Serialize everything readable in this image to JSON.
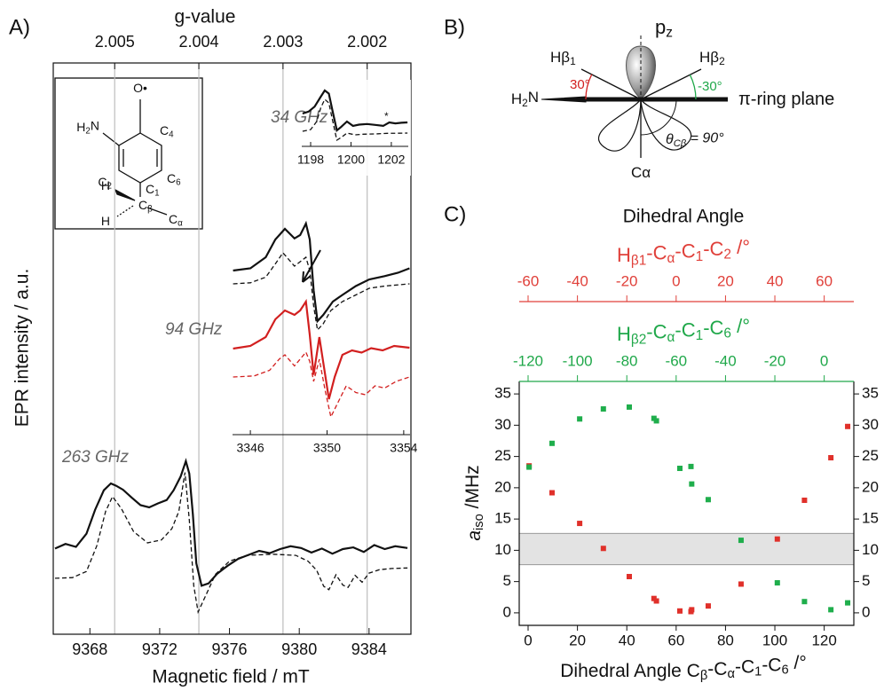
{
  "panel_labels": [
    "A)",
    "B)",
    "C)"
  ],
  "molecule": {
    "labels": [
      [
        "O•"
      ],
      [
        "H",
        "2",
        "N"
      ],
      [
        "C",
        "4"
      ],
      [
        "C",
        "2"
      ],
      [
        "C",
        "1"
      ],
      [
        "C",
        "6"
      ],
      [
        "H"
      ],
      [
        "C",
        "β"
      ],
      [
        "C",
        "α"
      ],
      [
        "H"
      ]
    ]
  },
  "diagram": {
    "labels": [
      [
        "p",
        "z"
      ],
      [
        "Hβ",
        "1"
      ],
      [
        "Hβ",
        "2"
      ],
      [
        "30°"
      ],
      [
        "-30°"
      ],
      [
        "H",
        "2",
        "N"
      ],
      [
        "π-ring plane"
      ],
      [
        "θ",
        "Cβ",
        " = 90°"
      ],
      [
        "Cα"
      ]
    ],
    "label_colors": [
      "#111111",
      "#111111",
      "#111111",
      "#d21f1f",
      "#20a84a",
      "#111111",
      "#111111",
      "#111111",
      "#111111"
    ]
  },
  "chart_data": [
    {
      "type": "line",
      "x_label": "Magnetic field / mT",
      "y_label": "EPR intensity / a.u.",
      "x2_label": "g-value",
      "annotation": "263 GHz",
      "xlim": [
        9365.9,
        9386.4
      ],
      "xticks": [
        9368,
        9372,
        9376,
        9380,
        9384
      ],
      "x2lim": [
        2.00573,
        2.00148
      ],
      "x2ticks": [
        2.005,
        2.004,
        2.003,
        2.002
      ],
      "x2grid": true,
      "ylim": [
        0,
        100
      ],
      "series": [
        {
          "color": "#111111",
          "style": "solid",
          "x": [
            9366.0,
            9366.6,
            9367.2,
            9367.8,
            9368.3,
            9368.8,
            9369.2,
            9369.5,
            9369.9,
            9370.4,
            9370.9,
            9371.4,
            9371.9,
            9372.4,
            9372.8,
            9373.2,
            9373.5,
            9373.7,
            9373.9,
            9374.1,
            9374.4,
            9374.8,
            9375.3,
            9375.9,
            9376.5,
            9377.1,
            9377.7,
            9378.3,
            9378.9,
            9379.5,
            9380.1,
            9380.7,
            9381.3,
            9381.9,
            9382.5,
            9383.1,
            9383.7,
            9384.3,
            9384.9,
            9385.5,
            9386.2
          ],
          "values": [
            15.0,
            15.8,
            15.3,
            17.6,
            21.8,
            25.2,
            26.4,
            26.0,
            25.3,
            23.9,
            22.6,
            22.2,
            22.9,
            23.5,
            25.2,
            27.6,
            30.3,
            28.1,
            21.0,
            12.4,
            8.5,
            8.9,
            10.6,
            12.0,
            13.2,
            13.9,
            14.6,
            14.2,
            14.9,
            15.4,
            15.1,
            14.3,
            15.0,
            14.1,
            14.9,
            15.2,
            14.4,
            15.6,
            14.9,
            15.4,
            15.1
          ]
        },
        {
          "color": "#111111",
          "style": "dashed",
          "x": [
            9366.0,
            9367.0,
            9367.8,
            9368.4,
            9368.9,
            9369.3,
            9369.8,
            9370.5,
            9371.3,
            9372.1,
            9372.7,
            9373.1,
            9373.45,
            9373.7,
            9373.95,
            9374.2,
            9374.6,
            9375.2,
            9376.0,
            9377.0,
            9378.5,
            9379.8,
            9380.5,
            9381.0,
            9381.4,
            9381.7,
            9382.1,
            9382.5,
            9382.8,
            9383.2,
            9383.6,
            9384.0,
            9384.6,
            9385.3,
            9386.2
          ],
          "values": [
            9.8,
            9.9,
            11.0,
            15.5,
            21.5,
            24.1,
            22.0,
            18.0,
            16.0,
            16.5,
            18.5,
            21.5,
            28.3,
            20.0,
            8.5,
            3.9,
            6.5,
            10.5,
            12.8,
            13.8,
            14.0,
            13.8,
            12.8,
            11.2,
            8.4,
            7.8,
            10.4,
            8.6,
            8.2,
            10.3,
            9.1,
            10.7,
            11.3,
            11.5,
            11.6
          ]
        }
      ]
    },
    {
      "type": "line",
      "annotation": "34 GHz",
      "marker_note": "*",
      "xlim": [
        1197.56,
        1202.84
      ],
      "xticks": [
        1198,
        1200,
        1202
      ],
      "ylim": [
        0,
        100
      ],
      "series": [
        {
          "color": "#111111",
          "style": "solid",
          "x": [
            1197.6,
            1197.9,
            1198.2,
            1198.5,
            1198.7,
            1198.9,
            1199.1,
            1199.3,
            1199.5,
            1199.8,
            1200.1,
            1200.4,
            1200.8,
            1201.2,
            1201.6,
            1201.9,
            1202.2,
            1202.5,
            1202.8
          ],
          "values": [
            52.9,
            56,
            64,
            80,
            90,
            85,
            55,
            25.7,
            31,
            40,
            33,
            35,
            36,
            34.5,
            33,
            38.6,
            37,
            38,
            38.6
          ]
        },
        {
          "color": "#111111",
          "style": "dashed",
          "x": [
            1197.6,
            1198.0,
            1198.3,
            1198.5,
            1198.7,
            1198.9,
            1199.1,
            1199.3,
            1199.5,
            1199.8,
            1200.2,
            1200.6,
            1201.2,
            1201.8,
            1202.3,
            1202.8
          ],
          "values": [
            24.3,
            27,
            40,
            62,
            75.7,
            70,
            40,
            10,
            14,
            21.4,
            18.6,
            19.5,
            20,
            21,
            21.2,
            21.4
          ]
        }
      ]
    },
    {
      "type": "line",
      "annotation": "94 GHz",
      "xlim": [
        3345.07,
        3354.33
      ],
      "xticks": [
        3346,
        3350,
        3354
      ],
      "ylim": [
        0,
        100
      ],
      "series": [
        {
          "color": "#111111",
          "style": "solid",
          "x": [
            3345.1,
            3346,
            3346.8,
            3347.3,
            3347.8,
            3348.3,
            3348.6,
            3348.9,
            3349.1,
            3349.3,
            3349.5,
            3349.8,
            3350.3,
            3350.8,
            3351.5,
            3352.2,
            3353,
            3353.7,
            3354.3
          ],
          "values": [
            74,
            75,
            80,
            88,
            92.8,
            88.5,
            90,
            95.2,
            88,
            65,
            51.2,
            54,
            60,
            63,
            67,
            70,
            71.5,
            73,
            75
          ]
        },
        {
          "color": "#111111",
          "style": "dashed",
          "x": [
            3345.1,
            3346,
            3346.8,
            3347.3,
            3347.7,
            3348.3,
            3348.9,
            3349.1,
            3349.3,
            3349.5,
            3349.8,
            3350.2,
            3350.8,
            3351.5,
            3352.2,
            3353,
            3354.3
          ],
          "values": [
            68,
            68.5,
            71,
            77,
            82,
            76,
            80,
            74,
            58,
            47.2,
            50,
            56,
            60,
            63,
            66,
            67,
            68
          ]
        },
        {
          "color": "#d21f1f",
          "style": "solid",
          "x": [
            3345.1,
            3346,
            3346.8,
            3347.3,
            3347.8,
            3348.3,
            3348.6,
            3348.9,
            3349.1,
            3349.3,
            3349.6,
            3349.85,
            3350.1,
            3350.4,
            3350.8,
            3351.3,
            3351.8,
            3352.3,
            3352.9,
            3353.5,
            3354.3
          ],
          "values": [
            38.8,
            40,
            44,
            52,
            56,
            54,
            56,
            60,
            45,
            27,
            44,
            30,
            16,
            26,
            36,
            38,
            37,
            39,
            38,
            40,
            39.2
          ]
        },
        {
          "color": "#d21f1f",
          "style": "dashed",
          "x": [
            3345.1,
            3346.2,
            3347.0,
            3347.5,
            3347.8,
            3348.3,
            3348.9,
            3349.1,
            3349.3,
            3349.6,
            3349.9,
            3350.2,
            3350.6,
            3351.0,
            3351.5,
            3352.0,
            3352.5,
            3353.0,
            3353.6,
            3354.3
          ],
          "values": [
            26,
            26.5,
            29,
            34,
            36,
            31,
            37.2,
            33,
            24,
            34,
            20,
            8,
            15,
            22,
            19,
            18,
            22,
            21,
            24,
            26
          ]
        }
      ]
    },
    {
      "type": "scatter",
      "title": "Dihedral Angle",
      "x_label": [
        "Dihedral Angle C",
        "β",
        "-C",
        "α",
        "-C",
        "1",
        "-C",
        "6",
        " /°"
      ],
      "y_label": [
        "a",
        "iso",
        " /MHz"
      ],
      "xlim": [
        -3.6,
        132
      ],
      "xticks": [
        0,
        20,
        40,
        60,
        80,
        100,
        120
      ],
      "ylim": [
        -2,
        37
      ],
      "yticks": [
        0,
        5,
        10,
        15,
        20,
        25,
        30,
        35
      ],
      "right_axis": true,
      "band": [
        7.7,
        12.7
      ],
      "top_axes": [
        {
          "label": [
            "H",
            "β1",
            "-C",
            "α",
            "-C",
            "1",
            "-C",
            "2",
            " /°"
          ],
          "color": "#e0403a",
          "lim": [
            -63.6,
            72
          ],
          "ticks": [
            -60,
            -40,
            -20,
            0,
            20,
            40,
            60
          ]
        },
        {
          "label": [
            "H",
            "β2",
            "-C",
            "α",
            "-C",
            "1",
            "-C",
            "6",
            " /°"
          ],
          "color": "#20a84a",
          "lim": [
            -123.6,
            12
          ],
          "ticks": [
            -120,
            -100,
            -80,
            -60,
            -40,
            -20,
            0
          ]
        }
      ],
      "series": [
        {
          "color": "#e0302a",
          "x": [
            0.4,
            9.7,
            20.9,
            30.5,
            41,
            51,
            52,
            61.5,
            66,
            66.3,
            73,
            86.3,
            101,
            112,
            122.7,
            129.5
          ],
          "values": [
            23.5,
            19.2,
            14.3,
            10.3,
            5.8,
            2.3,
            1.9,
            0.3,
            0.2,
            0.5,
            1.1,
            4.6,
            11.8,
            18.0,
            24.8,
            29.8
          ]
        },
        {
          "color": "#1fae4c",
          "x": [
            0.4,
            9.7,
            20.9,
            30.5,
            41,
            51,
            52,
            61.5,
            66,
            66.3,
            73,
            86.3,
            101,
            112,
            122.7,
            129.5
          ],
          "values": [
            23.3,
            27.1,
            31.0,
            32.6,
            32.9,
            31.1,
            30.7,
            23.1,
            23.4,
            20.6,
            18.1,
            11.6,
            4.8,
            1.8,
            0.5,
            1.6
          ]
        }
      ]
    }
  ]
}
